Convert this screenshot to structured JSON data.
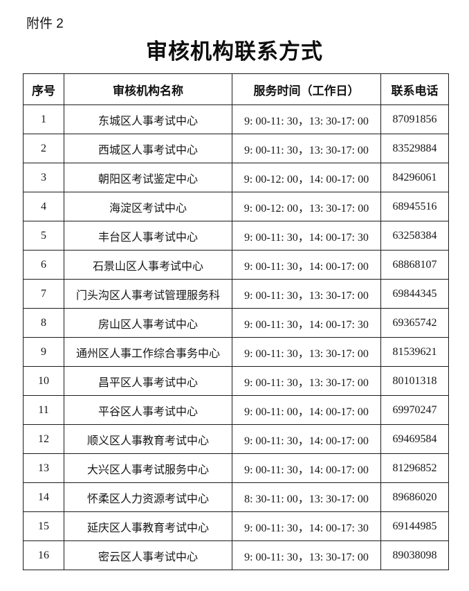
{
  "page": {
    "attachment_label": "附件 2",
    "title": "审核机构联系方式"
  },
  "table": {
    "headers": [
      "序号",
      "审核机构名称",
      "服务时间（工作日）",
      "联系电话"
    ],
    "rows": [
      {
        "no": "1",
        "name": "东城区人事考试中心",
        "hours": "9: 00-11: 30，13: 30-17: 00",
        "phone": "87091856"
      },
      {
        "no": "2",
        "name": "西城区人事考试中心",
        "hours": "9: 00-11: 30，13: 30-17: 00",
        "phone": "83529884"
      },
      {
        "no": "3",
        "name": "朝阳区考试鉴定中心",
        "hours": "9: 00-12: 00，14: 00-17: 00",
        "phone": "84296061"
      },
      {
        "no": "4",
        "name": "海淀区考试中心",
        "hours": "9: 00-12: 00，13: 30-17: 00",
        "phone": "68945516"
      },
      {
        "no": "5",
        "name": "丰台区人事考试中心",
        "hours": "9: 00-11: 30，14: 00-17: 30",
        "phone": "63258384"
      },
      {
        "no": "6",
        "name": "石景山区人事考试中心",
        "hours": "9: 00-11: 30，14: 00-17: 00",
        "phone": "68868107"
      },
      {
        "no": "7",
        "name": "门头沟区人事考试管理服务科",
        "hours": "9: 00-11: 30，13: 30-17: 00",
        "phone": "69844345"
      },
      {
        "no": "8",
        "name": "房山区人事考试中心",
        "hours": "9: 00-11: 30，14: 00-17: 30",
        "phone": "69365742"
      },
      {
        "no": "9",
        "name": "通州区人事工作综合事务中心",
        "hours": "9: 00-11: 30，13: 30-17: 00",
        "phone": "81539621"
      },
      {
        "no": "10",
        "name": "昌平区人事考试中心",
        "hours": "9: 00-11: 30，13: 30-17: 00",
        "phone": "80101318"
      },
      {
        "no": "11",
        "name": "平谷区人事考试中心",
        "hours": "9: 00-11: 00，14: 00-17: 00",
        "phone": "69970247"
      },
      {
        "no": "12",
        "name": "顺义区人事教育考试中心",
        "hours": "9: 00-11: 30，14: 00-17: 00",
        "phone": "69469584"
      },
      {
        "no": "13",
        "name": "大兴区人事考试服务中心",
        "hours": "9: 00-11: 30，14: 00-17: 00",
        "phone": "81296852"
      },
      {
        "no": "14",
        "name": "怀柔区人力资源考试中心",
        "hours": "8: 30-11: 00，13: 30-17: 00",
        "phone": "89686020"
      },
      {
        "no": "15",
        "name": "延庆区人事教育考试中心",
        "hours": "9: 00-11: 30，14: 00-17: 30",
        "phone": "69144985"
      },
      {
        "no": "16",
        "name": "密云区人事考试中心",
        "hours": "9: 00-11: 30，13: 30-17: 00",
        "phone": "89038098"
      }
    ]
  }
}
